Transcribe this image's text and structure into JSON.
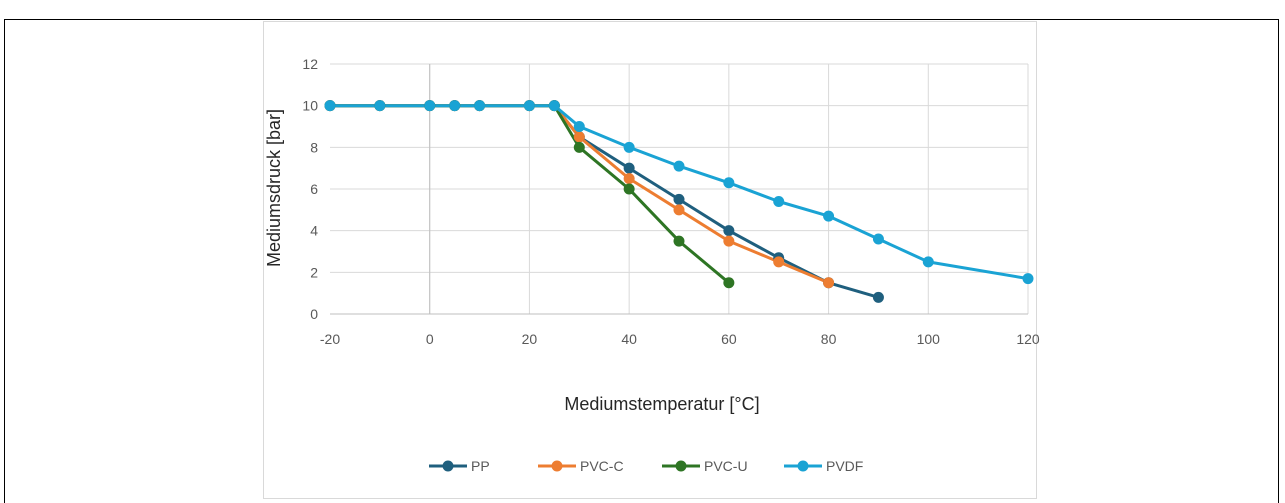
{
  "chart_data": {
    "type": "line",
    "title": "",
    "xlabel": "Mediumstemperatur [°C]",
    "ylabel": "Mediumsdruck [bar]",
    "xlim": [
      -20,
      120
    ],
    "ylim": [
      0,
      12
    ],
    "x_ticks": [
      "-20",
      "0",
      "20",
      "40",
      "60",
      "80",
      "100",
      "120"
    ],
    "y_ticks": [
      "0",
      "2",
      "4",
      "6",
      "8",
      "10",
      "12"
    ],
    "x_tick_values": [
      -20,
      0,
      20,
      40,
      60,
      80,
      100,
      120
    ],
    "y_tick_values": [
      0,
      2,
      4,
      6,
      8,
      10,
      12
    ],
    "grid": true,
    "legend_position": "bottom",
    "series": [
      {
        "name": "PP",
        "color": "#1f5f7e",
        "points": [
          [
            -20,
            10
          ],
          [
            -10,
            10
          ],
          [
            0,
            10
          ],
          [
            5,
            10
          ],
          [
            10,
            10
          ],
          [
            20,
            10
          ],
          [
            25,
            10
          ],
          [
            30,
            8.5
          ],
          [
            40,
            7
          ],
          [
            50,
            5.5
          ],
          [
            60,
            4
          ],
          [
            70,
            2.7
          ],
          [
            80,
            1.5
          ],
          [
            90,
            0.8
          ]
        ]
      },
      {
        "name": "PVC-C",
        "color": "#ed7d31",
        "points": [
          [
            -20,
            10
          ],
          [
            -10,
            10
          ],
          [
            0,
            10
          ],
          [
            5,
            10
          ],
          [
            10,
            10
          ],
          [
            20,
            10
          ],
          [
            25,
            10
          ],
          [
            30,
            8.5
          ],
          [
            40,
            6.5
          ],
          [
            50,
            5
          ],
          [
            60,
            3.5
          ],
          [
            70,
            2.5
          ],
          [
            80,
            1.5
          ]
        ]
      },
      {
        "name": "PVC-U",
        "color": "#2e7524",
        "points": [
          [
            -20,
            10
          ],
          [
            -10,
            10
          ],
          [
            0,
            10
          ],
          [
            5,
            10
          ],
          [
            10,
            10
          ],
          [
            20,
            10
          ],
          [
            25,
            10
          ],
          [
            30,
            8
          ],
          [
            40,
            6
          ],
          [
            50,
            3.5
          ],
          [
            60,
            1.5
          ]
        ]
      },
      {
        "name": "PVDF",
        "color": "#1aa3d4",
        "points": [
          [
            -20,
            10
          ],
          [
            -10,
            10
          ],
          [
            0,
            10
          ],
          [
            5,
            10
          ],
          [
            10,
            10
          ],
          [
            20,
            10
          ],
          [
            25,
            10
          ],
          [
            30,
            9
          ],
          [
            40,
            8
          ],
          [
            50,
            7.1
          ],
          [
            60,
            6.3
          ],
          [
            70,
            5.4
          ],
          [
            80,
            4.7
          ],
          [
            90,
            3.6
          ],
          [
            100,
            2.5
          ],
          [
            120,
            1.7
          ]
        ]
      }
    ]
  }
}
